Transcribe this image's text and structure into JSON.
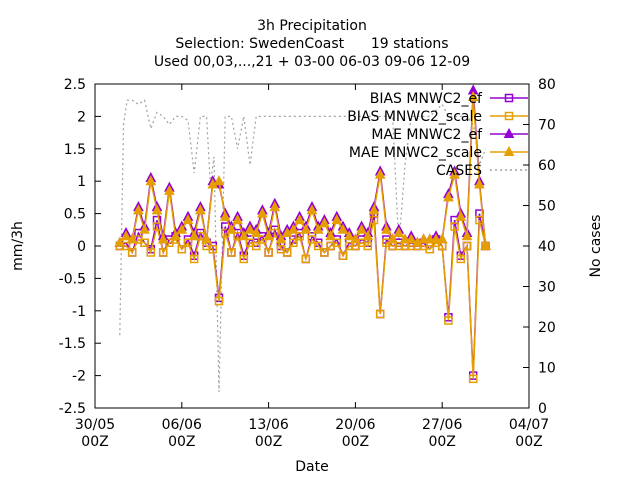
{
  "chart_data": {
    "type": "line",
    "title_lines": [
      "3h Precipitation",
      "Selection: SwedenCoast      19 stations",
      "Used 00,03,...,21 + 03-00 06-03 09-06 12-09"
    ],
    "xlabel": "Date",
    "ylabel": "mm/3h",
    "y2label": "No cases",
    "xlim": [
      0,
      35
    ],
    "ylim": [
      -2.5,
      2.5
    ],
    "y2lim": [
      0,
      80
    ],
    "x_ticks": [
      {
        "x": 0,
        "line1": "30/05",
        "line2": "00Z"
      },
      {
        "x": 7,
        "line1": "06/06",
        "line2": "00Z"
      },
      {
        "x": 14,
        "line1": "13/06",
        "line2": "00Z"
      },
      {
        "x": 21,
        "line1": "20/06",
        "line2": "00Z"
      },
      {
        "x": 28,
        "line1": "27/06",
        "line2": "00Z"
      },
      {
        "x": 35,
        "line1": "04/07",
        "line2": "00Z"
      }
    ],
    "y_ticks": [
      "-2.5",
      "-2",
      "-1.5",
      "-1",
      "-0.5",
      "0",
      "0.5",
      "1",
      "1.5",
      "2",
      "2.5"
    ],
    "y2_ticks": [
      "0",
      "10",
      "20",
      "30",
      "40",
      "50",
      "60",
      "70",
      "80"
    ],
    "legend_position": "top-right",
    "x_unit_note": "x values are days since 30/05 00Z",
    "series": [
      {
        "name": "BIAS MNWC2_ef",
        "color": "#9400d3",
        "marker": "square",
        "axis": "y",
        "x": [
          2.0,
          2.5,
          3.0,
          3.5,
          4.0,
          4.5,
          5.0,
          5.5,
          6.0,
          6.5,
          7.0,
          7.5,
          8.0,
          8.5,
          9.0,
          9.5,
          10.0,
          10.5,
          11.0,
          11.5,
          12.0,
          12.5,
          13.0,
          13.5,
          14.0,
          14.5,
          15.0,
          15.5,
          16.0,
          16.5,
          17.0,
          17.5,
          18.0,
          18.5,
          19.0,
          19.5,
          20.0,
          20.5,
          21.0,
          21.5,
          22.0,
          22.5,
          23.0,
          23.5,
          24.0,
          24.5,
          25.0,
          25.5,
          26.0,
          26.5,
          27.0,
          27.5,
          28.0,
          28.5,
          29.0,
          29.5,
          30.0,
          30.5,
          31.0,
          31.5
        ],
        "y": [
          0.0,
          0.05,
          -0.1,
          0.2,
          0.05,
          -0.05,
          0.4,
          -0.1,
          0.1,
          0.15,
          -0.05,
          0.1,
          -0.15,
          0.2,
          0.05,
          0.0,
          -0.8,
          0.3,
          -0.1,
          0.2,
          -0.15,
          0.1,
          0.05,
          0.15,
          -0.1,
          0.25,
          0.0,
          -0.1,
          0.1,
          0.2,
          -0.2,
          0.15,
          0.05,
          -0.1,
          0.0,
          0.1,
          -0.15,
          0.05,
          0.0,
          0.1,
          0.05,
          0.5,
          -1.05,
          0.1,
          0.0,
          0.05,
          0.0,
          0.05,
          0.0,
          0.05,
          -0.05,
          0.1,
          0.0,
          -1.1,
          0.4,
          -0.15,
          0.0,
          -2.0,
          0.5,
          0.0
        ]
      },
      {
        "name": "BIAS MNWC2_scale",
        "color": "#e69f00",
        "marker": "square",
        "axis": "y",
        "x": [
          2.0,
          2.5,
          3.0,
          3.5,
          4.0,
          4.5,
          5.0,
          5.5,
          6.0,
          6.5,
          7.0,
          7.5,
          8.0,
          8.5,
          9.0,
          9.5,
          10.0,
          10.5,
          11.0,
          11.5,
          12.0,
          12.5,
          13.0,
          13.5,
          14.0,
          14.5,
          15.0,
          15.5,
          16.0,
          16.5,
          17.0,
          17.5,
          18.0,
          18.5,
          19.0,
          19.5,
          20.0,
          20.5,
          21.0,
          21.5,
          22.0,
          22.5,
          23.0,
          23.5,
          24.0,
          24.5,
          25.0,
          25.5,
          26.0,
          26.5,
          27.0,
          27.5,
          28.0,
          28.5,
          29.0,
          29.5,
          30.0,
          30.5,
          31.0,
          31.5
        ],
        "y": [
          0.0,
          0.0,
          -0.1,
          0.1,
          0.05,
          -0.1,
          0.3,
          -0.1,
          0.05,
          0.1,
          -0.05,
          0.05,
          -0.2,
          0.15,
          0.0,
          -0.05,
          -0.85,
          0.2,
          -0.1,
          0.15,
          -0.2,
          0.05,
          0.0,
          0.1,
          -0.1,
          0.2,
          -0.05,
          -0.1,
          0.05,
          0.15,
          -0.2,
          0.1,
          0.0,
          -0.1,
          0.0,
          0.05,
          -0.15,
          0.0,
          0.0,
          0.05,
          0.0,
          0.4,
          -1.05,
          0.05,
          0.0,
          0.0,
          0.0,
          0.0,
          0.0,
          0.0,
          -0.05,
          0.05,
          0.0,
          -1.15,
          0.3,
          -0.2,
          0.0,
          -2.05,
          0.4,
          0.0
        ]
      },
      {
        "name": "MAE MNWC2_ef",
        "color": "#9400d3",
        "marker": "triangle",
        "axis": "y",
        "x": [
          2.0,
          2.5,
          3.0,
          3.5,
          4.0,
          4.5,
          5.0,
          5.5,
          6.0,
          6.5,
          7.0,
          7.5,
          8.0,
          8.5,
          9.0,
          9.5,
          10.0,
          10.5,
          11.0,
          11.5,
          12.0,
          12.5,
          13.0,
          13.5,
          14.0,
          14.5,
          15.0,
          15.5,
          16.0,
          16.5,
          17.0,
          17.5,
          18.0,
          18.5,
          19.0,
          19.5,
          20.0,
          20.5,
          21.0,
          21.5,
          22.0,
          22.5,
          23.0,
          23.5,
          24.0,
          24.5,
          25.0,
          25.5,
          26.0,
          26.5,
          27.0,
          27.5,
          28.0,
          28.5,
          29.0,
          29.5,
          30.0,
          30.5,
          31.0,
          31.5
        ],
        "y": [
          0.05,
          0.2,
          0.1,
          0.6,
          0.3,
          1.05,
          0.6,
          0.15,
          0.9,
          0.2,
          0.3,
          0.45,
          0.2,
          0.6,
          0.1,
          1.0,
          0.95,
          0.5,
          0.3,
          0.45,
          0.2,
          0.3,
          0.25,
          0.55,
          0.2,
          0.65,
          0.15,
          0.25,
          0.3,
          0.45,
          0.3,
          0.6,
          0.3,
          0.4,
          0.2,
          0.45,
          0.3,
          0.2,
          0.1,
          0.3,
          0.2,
          0.6,
          1.15,
          0.3,
          0.1,
          0.25,
          0.1,
          0.15,
          0.05,
          0.1,
          0.1,
          0.15,
          0.1,
          0.8,
          1.15,
          0.5,
          0.2,
          2.4,
          1.0,
          0.0
        ]
      },
      {
        "name": "MAE MNWC2_scale",
        "color": "#e69f00",
        "marker": "triangle",
        "axis": "y",
        "x": [
          2.0,
          2.5,
          3.0,
          3.5,
          4.0,
          4.5,
          5.0,
          5.5,
          6.0,
          6.5,
          7.0,
          7.5,
          8.0,
          8.5,
          9.0,
          9.5,
          10.0,
          10.5,
          11.0,
          11.5,
          12.0,
          12.5,
          13.0,
          13.5,
          14.0,
          14.5,
          15.0,
          15.5,
          16.0,
          16.5,
          17.0,
          17.5,
          18.0,
          18.5,
          19.0,
          19.5,
          20.0,
          20.5,
          21.0,
          21.5,
          22.0,
          22.5,
          23.0,
          23.5,
          24.0,
          24.5,
          25.0,
          25.5,
          26.0,
          26.5,
          27.0,
          27.5,
          28.0,
          28.5,
          29.0,
          29.5,
          30.0,
          30.5,
          31.0,
          31.5
        ],
        "y": [
          0.05,
          0.15,
          0.1,
          0.55,
          0.25,
          1.0,
          0.55,
          0.1,
          0.85,
          0.15,
          0.25,
          0.4,
          0.15,
          0.55,
          0.1,
          0.95,
          1.0,
          0.45,
          0.25,
          0.4,
          0.15,
          0.25,
          0.2,
          0.5,
          0.15,
          0.6,
          0.1,
          0.2,
          0.25,
          0.4,
          0.25,
          0.55,
          0.25,
          0.35,
          0.15,
          0.4,
          0.25,
          0.15,
          0.1,
          0.25,
          0.15,
          0.55,
          1.1,
          0.25,
          0.1,
          0.2,
          0.1,
          0.1,
          0.05,
          0.1,
          0.1,
          0.1,
          0.1,
          0.75,
          1.1,
          0.45,
          0.15,
          2.3,
          0.95,
          0.0
        ]
      },
      {
        "name": "CASES",
        "color": "#a0a0a0",
        "dash": "dotted",
        "axis": "y2",
        "x": [
          2.0,
          2.3,
          2.6,
          3.0,
          3.5,
          4.0,
          4.5,
          5.0,
          5.5,
          6.0,
          6.5,
          7.0,
          7.5,
          8.0,
          8.5,
          9.0,
          9.3,
          9.6,
          10.0,
          10.5,
          11.0,
          11.5,
          12.0,
          12.5,
          13.0,
          14.0,
          15.0,
          16.0,
          17.0,
          18.0,
          19.0,
          20.0,
          21.0,
          22.0,
          23.0,
          24.0,
          24.5,
          25.0,
          25.5,
          26.0,
          26.5,
          27.0,
          28.0,
          28.5,
          29.0,
          29.5,
          30.0,
          30.5,
          31.0,
          31.5
        ],
        "y": [
          18,
          70,
          76,
          76,
          75,
          76,
          69,
          73,
          72,
          70,
          72,
          72,
          71,
          58,
          72,
          72,
          55,
          62,
          4,
          72,
          72,
          64,
          72,
          60,
          72,
          72,
          72,
          72,
          72,
          72,
          72,
          72,
          72,
          72,
          72,
          72,
          40,
          60,
          72,
          72,
          72,
          72,
          75,
          72,
          72,
          72,
          72,
          70,
          60,
          64
        ]
      }
    ]
  }
}
